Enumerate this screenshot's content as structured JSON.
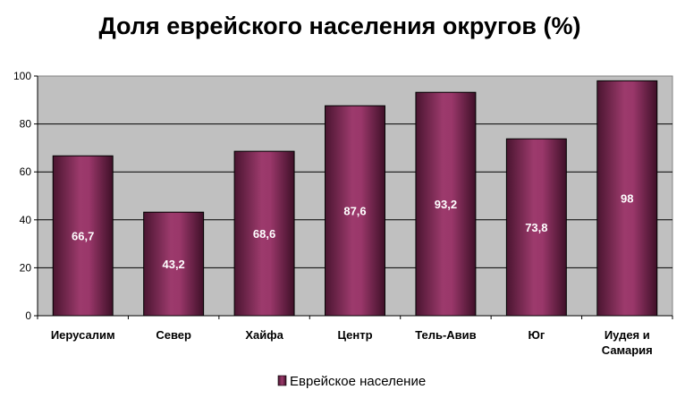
{
  "chart_data": {
    "type": "bar",
    "title": "Доля еврейского населения округов (%)",
    "categories": [
      "Иерусалим",
      "Север",
      "Хайфа",
      "Центр",
      "Тель-Авив",
      "Юг",
      "Иудея и Самария"
    ],
    "series": [
      {
        "name": "Еврейское население",
        "values": [
          66.7,
          43.2,
          68.6,
          87.6,
          93.2,
          73.8,
          98
        ],
        "labels": [
          "66,7",
          "43,2",
          "68,6",
          "87,6",
          "93,2",
          "73,8",
          "98"
        ],
        "color": "#8B2A5E"
      }
    ],
    "ylim": [
      0,
      100
    ],
    "yticks": [
      0,
      20,
      40,
      60,
      80,
      100
    ],
    "grid": true,
    "plot_background": "#C0C0C0",
    "legend_position": "bottom"
  }
}
